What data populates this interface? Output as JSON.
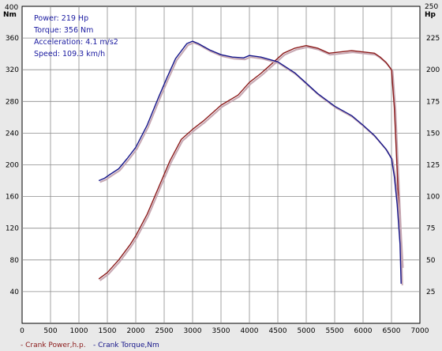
{
  "info": {
    "power": "Power: 219 Hp",
    "torque": "Torque: 356 Nm",
    "acceleration": "Acceleration: 4.1 m/s2",
    "speed": "Speed: 109.3 km/h"
  },
  "legend": {
    "power_label": "- Crank Power,h.p.",
    "torque_label": "- Crank Torque,Nm"
  },
  "colors": {
    "power": "#8b1a1a",
    "torque": "#16168a",
    "shadow": "#c6a7b2",
    "grid": "#8c8c8c",
    "plot_bg": "#ffffff"
  },
  "chart_data": {
    "type": "line",
    "xlabel": "",
    "xlim": [
      0,
      7000
    ],
    "x_ticks": [
      "0",
      "500",
      "1000",
      "1500",
      "2000",
      "2500",
      "3000",
      "3500",
      "4000",
      "4500",
      "5000",
      "5500",
      "6000",
      "6500",
      "7000"
    ],
    "y_left": {
      "unit": "Nm",
      "lim": [
        0,
        400
      ],
      "ticks": [
        "40",
        "80",
        "120",
        "160",
        "200",
        "240",
        "280",
        "320",
        "360"
      ],
      "top_label": "400"
    },
    "y_right": {
      "unit": "Hp",
      "lim": [
        0,
        250
      ],
      "ticks": [
        "25",
        "50",
        "75",
        "100",
        "125",
        "150",
        "175",
        "200",
        "225"
      ],
      "top_label": "250"
    },
    "grid": true,
    "series": [
      {
        "name": "Crank Power,h.p.",
        "axis": "right",
        "x": [
          1350,
          1500,
          1700,
          1900,
          2000,
          2200,
          2400,
          2600,
          2800,
          3000,
          3200,
          3500,
          3800,
          4000,
          4200,
          4400,
          4600,
          4800,
          5000,
          5200,
          5400,
          5600,
          5800,
          6000,
          6200,
          6300,
          6400,
          6500,
          6550,
          6600,
          6650,
          6680
        ],
        "values": [
          35,
          40,
          50,
          62,
          69,
          86,
          107,
          128,
          145,
          153,
          160,
          172,
          180,
          190,
          197,
          205,
          213,
          217,
          219,
          217,
          213,
          214,
          215,
          214,
          213,
          210,
          206,
          200,
          170,
          120,
          70,
          45
        ]
      },
      {
        "name": "Crank Torque,Nm",
        "axis": "left",
        "x": [
          1350,
          1450,
          1550,
          1700,
          1850,
          2000,
          2200,
          2400,
          2550,
          2700,
          2900,
          3000,
          3100,
          3300,
          3500,
          3700,
          3900,
          4000,
          4200,
          4500,
          4800,
          5000,
          5200,
          5500,
          5800,
          6000,
          6200,
          6400,
          6500,
          6550,
          6600,
          6650,
          6670
        ],
        "values": [
          180,
          183,
          188,
          195,
          208,
          222,
          250,
          285,
          310,
          334,
          353,
          356,
          353,
          345,
          339,
          336,
          335,
          338,
          336,
          330,
          316,
          303,
          290,
          274,
          262,
          250,
          237,
          220,
          208,
          185,
          150,
          100,
          50
        ]
      }
    ]
  }
}
